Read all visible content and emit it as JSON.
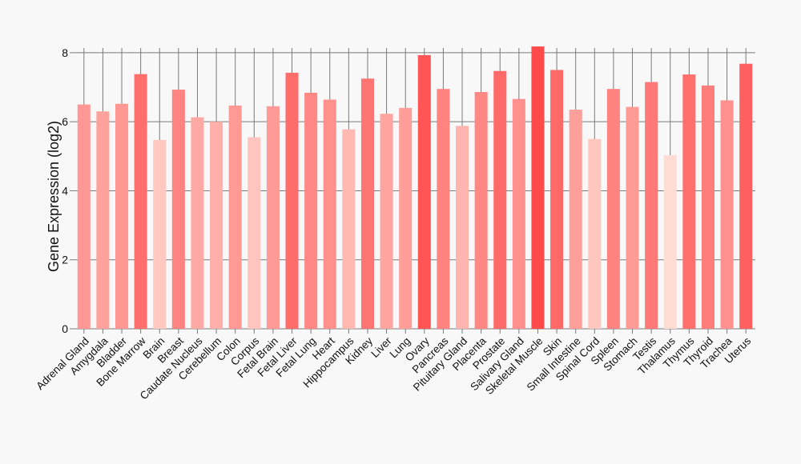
{
  "chart_data": {
    "type": "bar",
    "title": "",
    "xlabel": "",
    "ylabel": "Gene Expression (log2)",
    "ylim": [
      0,
      8.6
    ],
    "yticks": [
      0,
      2,
      4,
      6,
      8
    ],
    "grid": true,
    "colors": {
      "low": "#ffdcd4",
      "high": "#ff4a4a",
      "grid": "#7a7a7a",
      "background": "#f8f8f8"
    },
    "categories": [
      "Adrenal Gland",
      "Amygdala",
      "Bladder",
      "Bone Marrow",
      "Brain",
      "Breast",
      "Caudate Nucleus",
      "Cerebellum",
      "Colon",
      "Corpus",
      "Fetal Brain",
      "Fetal Liver",
      "Fetal Lung",
      "Heart",
      "Hippocampus",
      "Kidney",
      "Liver",
      "Lung",
      "Ovary",
      "Pancreas",
      "Pituitary Gland",
      "Placenta",
      "Prostate",
      "Salivary Gland",
      "Skeletal Muscle",
      "Skin",
      "Small Intestine",
      "Spinal Cord",
      "Spleen",
      "Stomach",
      "Testis",
      "Thalamus",
      "Thymus",
      "Thyroid",
      "Trachea",
      "Uterus"
    ],
    "values": [
      6.5,
      6.3,
      6.52,
      7.38,
      5.47,
      6.93,
      6.13,
      6.0,
      6.47,
      5.55,
      6.45,
      7.42,
      6.84,
      6.64,
      5.78,
      7.25,
      6.23,
      6.4,
      7.93,
      6.95,
      5.88,
      6.86,
      7.47,
      6.66,
      8.18,
      7.5,
      6.35,
      5.5,
      6.95,
      6.43,
      7.15,
      5.03,
      7.37,
      7.05,
      6.62,
      7.68
    ]
  }
}
